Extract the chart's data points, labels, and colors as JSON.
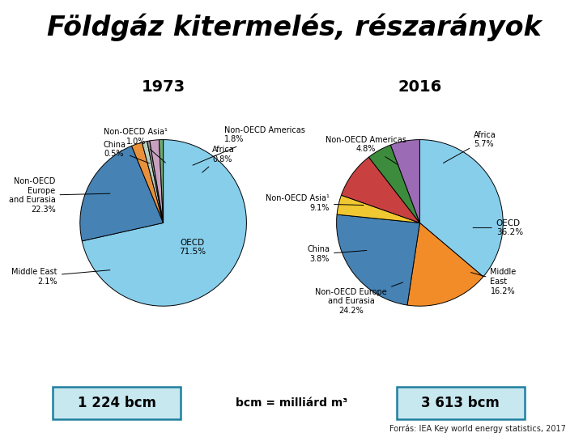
{
  "title": "Földgáz kitermelés, részarányok",
  "title_fontsize": 24,
  "title_style": "italic",
  "title_weight": "bold",
  "bg_color": "#ffffff",
  "year1": "1973",
  "year2": "2016",
  "bcm1": "1 224 bcm",
  "bcm2": "3 613 bcm",
  "bcm_label": "bcm = milliárd m³",
  "source": "Forrás: IEA Key world energy statistics, 2017",
  "pie1_values": [
    71.5,
    22.3,
    2.1,
    1.0,
    0.5,
    1.8,
    0.8
  ],
  "pie1_colors": [
    "#87CEEB",
    "#4682B4",
    "#E8913A",
    "#B8D0C0",
    "#909090",
    "#C8A0C0",
    "#70A870"
  ],
  "pie1_startangle": 90,
  "pie2_values": [
    36.2,
    16.2,
    24.2,
    3.8,
    9.1,
    4.8,
    5.7
  ],
  "pie2_colors": [
    "#87CEEB",
    "#F28C28",
    "#4682B4",
    "#F0C832",
    "#C84040",
    "#3D8C3D",
    "#9B6BB5"
  ],
  "pie2_startangle": 90,
  "sidebar_colors": [
    "#4472C4",
    "#C00000",
    "#375623",
    "#203864",
    "#7030A0",
    "#E36C09",
    "#808080"
  ],
  "divider_color": "#808080",
  "box_bg": "#C8E8F0",
  "box_edge": "#2080A0"
}
